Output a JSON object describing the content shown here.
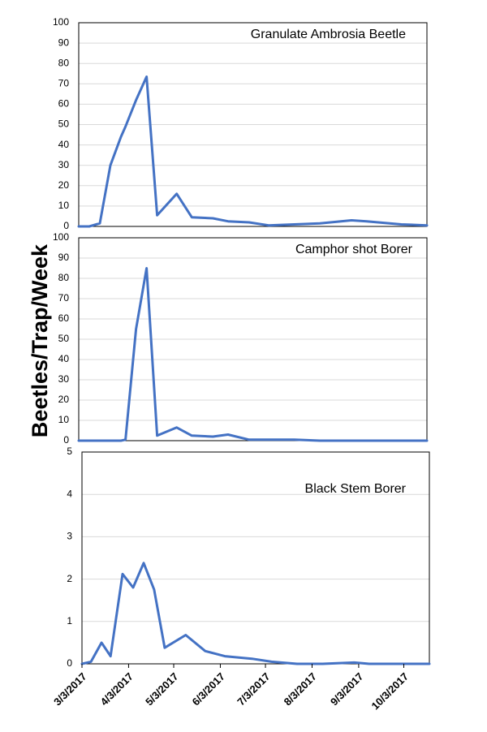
{
  "colors": {
    "series": "#4472c4",
    "grid": "#d9d9d9",
    "frame": "#000000"
  },
  "ylabel": "Beetles/Trap/Week",
  "xticks": {
    "labels": [
      "3/3/2017",
      "4/3/2017",
      "5/3/2017",
      "6/3/2017",
      "7/3/2017",
      "8/3/2017",
      "9/3/2017",
      "10/3/2017"
    ],
    "values": [
      "2017-03-03",
      "2017-04-03",
      "2017-05-03",
      "2017-06-03",
      "2017-07-03",
      "2017-08-03",
      "2017-09-03",
      "2017-10-03"
    ]
  },
  "chart_data": [
    {
      "type": "line",
      "title": "Granulate Ambrosia Beetle",
      "xlim": [
        "2017-03-03",
        "2017-10-20"
      ],
      "ylim": [
        0,
        100
      ],
      "yticks": [
        0,
        10,
        20,
        30,
        40,
        50,
        60,
        70,
        80,
        90,
        100
      ],
      "grid": true,
      "series": [
        {
          "x": [
            "2017-03-03",
            "2017-03-10",
            "2017-03-17",
            "2017-03-24",
            "2017-03-31",
            "2017-04-03",
            "2017-04-10",
            "2017-04-17",
            "2017-04-24",
            "2017-05-07",
            "2017-05-17",
            "2017-05-31",
            "2017-06-10",
            "2017-06-24",
            "2017-07-07",
            "2017-07-24",
            "2017-08-10",
            "2017-08-31",
            "2017-09-10",
            "2017-10-03",
            "2017-10-20"
          ],
          "y": [
            0,
            0,
            1.5,
            30,
            44,
            49,
            62,
            73.5,
            5.5,
            16,
            4.5,
            4,
            2.5,
            2,
            0.5,
            1,
            1.5,
            3,
            2.5,
            1,
            0.5
          ]
        }
      ]
    },
    {
      "type": "line",
      "title": "Camphor shot Borer",
      "xlim": [
        "2017-03-03",
        "2017-10-20"
      ],
      "ylim": [
        0,
        100
      ],
      "yticks": [
        0,
        10,
        20,
        30,
        40,
        50,
        60,
        70,
        80,
        90,
        100
      ],
      "grid": true,
      "series": [
        {
          "x": [
            "2017-03-03",
            "2017-03-17",
            "2017-03-31",
            "2017-04-03",
            "2017-04-10",
            "2017-04-17",
            "2017-04-24",
            "2017-05-07",
            "2017-05-17",
            "2017-05-31",
            "2017-06-10",
            "2017-06-24",
            "2017-07-07",
            "2017-07-24",
            "2017-08-10",
            "2017-08-31",
            "2017-09-10",
            "2017-10-03",
            "2017-10-20"
          ],
          "y": [
            0,
            0,
            0,
            0.5,
            55,
            85,
            2.5,
            6.5,
            2.5,
            2,
            3,
            0.5,
            0.5,
            0.5,
            0,
            0,
            0,
            0,
            0
          ]
        }
      ]
    },
    {
      "type": "line",
      "title": "Black Stem Borer",
      "xlim": [
        "2017-03-03",
        "2017-10-20"
      ],
      "ylim": [
        0,
        5
      ],
      "yticks": [
        0,
        1,
        2,
        3,
        4,
        5
      ],
      "grid": true,
      "series": [
        {
          "x": [
            "2017-03-03",
            "2017-03-09",
            "2017-03-16",
            "2017-03-22",
            "2017-03-30",
            "2017-04-06",
            "2017-04-13",
            "2017-04-20",
            "2017-04-27",
            "2017-05-11",
            "2017-05-24",
            "2017-06-06",
            "2017-06-24",
            "2017-07-07",
            "2017-07-24",
            "2017-08-10",
            "2017-08-31",
            "2017-09-10",
            "2017-10-03",
            "2017-10-20"
          ],
          "y": [
            0,
            0.05,
            0.5,
            0.18,
            2.12,
            1.8,
            2.38,
            1.75,
            0.38,
            0.68,
            0.3,
            0.18,
            0.12,
            0.05,
            0,
            0,
            0.03,
            0,
            0,
            0
          ]
        }
      ]
    }
  ]
}
